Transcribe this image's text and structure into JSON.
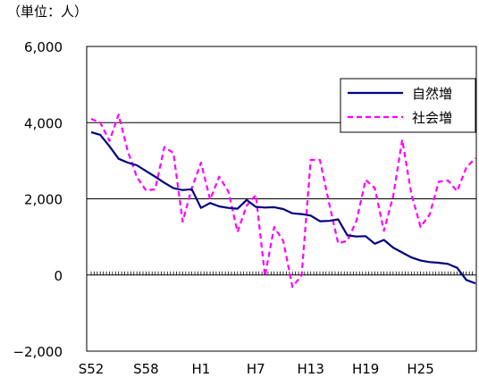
{
  "chart_data": {
    "type": "line",
    "unit_label": "（単位：人）",
    "x": [
      "S52",
      "S53",
      "S54",
      "S55",
      "S56",
      "S57",
      "S58",
      "S59",
      "S60",
      "S61",
      "S62",
      "S63",
      "H1",
      "H2",
      "H3",
      "H4",
      "H5",
      "H6",
      "H7",
      "H8",
      "H9",
      "H10",
      "H11",
      "H12",
      "H13",
      "H14",
      "H15",
      "H16",
      "H17",
      "H18",
      "H19",
      "H20",
      "H21",
      "H22",
      "H23",
      "H24",
      "H25",
      "H26",
      "H27",
      "H28",
      "H29",
      "H30",
      "R1"
    ],
    "x_tick_labels": [
      "S52",
      "S58",
      "H1",
      "H7",
      "H13",
      "H19",
      "H25"
    ],
    "series": [
      {
        "name": "自然増",
        "color": "#000080",
        "dash": "solid",
        "values": [
          3750,
          3680,
          3380,
          3050,
          2950,
          2880,
          2730,
          2580,
          2420,
          2280,
          2230,
          2250,
          1760,
          1890,
          1800,
          1760,
          1740,
          1970,
          1790,
          1770,
          1780,
          1730,
          1620,
          1600,
          1560,
          1410,
          1420,
          1460,
          1040,
          1010,
          1020,
          820,
          920,
          720,
          590,
          460,
          380,
          340,
          320,
          290,
          190,
          -130,
          -220
        ]
      },
      {
        "name": "社会増",
        "color": "#ff00ff",
        "dash": "dashed",
        "values": [
          4100,
          4000,
          3520,
          4210,
          3250,
          2570,
          2220,
          2250,
          3360,
          3200,
          1400,
          2280,
          2950,
          1980,
          2580,
          2190,
          1130,
          1820,
          2100,
          -30,
          1260,
          890,
          -310,
          -10,
          3020,
          3020,
          1890,
          830,
          900,
          1420,
          2500,
          2280,
          1160,
          2060,
          3550,
          2130,
          1260,
          1590,
          2450,
          2480,
          2200,
          2820,
          3070
        ]
      }
    ],
    "ylim": [
      -2000,
      6000
    ],
    "yticks": [
      {
        "value": 6000,
        "label": "6,000"
      },
      {
        "value": 4000,
        "label": "4,000"
      },
      {
        "value": 2000,
        "label": "2,000"
      },
      {
        "value": 0,
        "label": "0"
      },
      {
        "value": -2000,
        "label": "−2,000"
      }
    ],
    "grid": true,
    "legend_position": "top-right",
    "title": "",
    "xlabel": "",
    "ylabel": ""
  }
}
